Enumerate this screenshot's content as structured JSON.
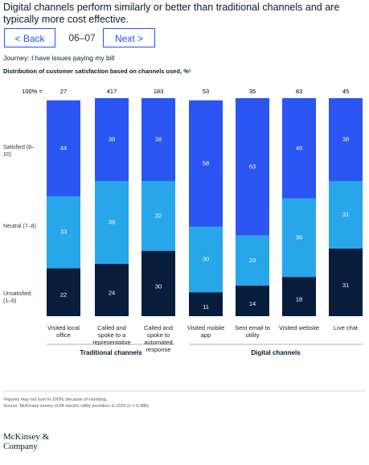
{
  "header": {
    "title": "Digital channels perform similarly or better than traditional channels and are typically more cost effective."
  },
  "nav": {
    "back": "< Back",
    "page": "06–07",
    "next": "Next >"
  },
  "journey": "Journey: I have issues paying my bill",
  "chart_data": {
    "type": "bar",
    "stacked": true,
    "title": "Distribution of customer satisfaction based on channels used, %¹",
    "n_label": "100% =",
    "n_values": [
      27,
      417,
      183,
      53,
      35,
      83,
      45
    ],
    "categories": [
      "Visited local office",
      "Called and spoke to a representative",
      "Called and spoke to automated response",
      "Visited mobile app",
      "Sent email to utility",
      "Visited website",
      "Live chat"
    ],
    "series": [
      {
        "name": "Satisfied (8–10)",
        "color": "#2b55f2",
        "values": [
          44,
          38,
          38,
          58,
          63,
          46,
          38
        ]
      },
      {
        "name": "Neutral (7–8)",
        "color": "#27a6ea",
        "values": [
          33,
          38,
          32,
          30,
          23,
          36,
          31
        ]
      },
      {
        "name": "Unsatisfied (1–6)",
        "color": "#081d3b",
        "values": [
          22,
          24,
          30,
          11,
          14,
          18,
          31
        ]
      }
    ],
    "ylim": [
      0,
      100
    ],
    "groups": [
      "Traditional channels",
      "Digital channels"
    ]
  },
  "footnotes": [
    "¹Figures may not sum to 100%, because of rounding.",
    "Source: McKinsey survey of 84 electric utility providers in 2020 (n = 5,388)"
  ],
  "logo": "McKinsey & Company"
}
